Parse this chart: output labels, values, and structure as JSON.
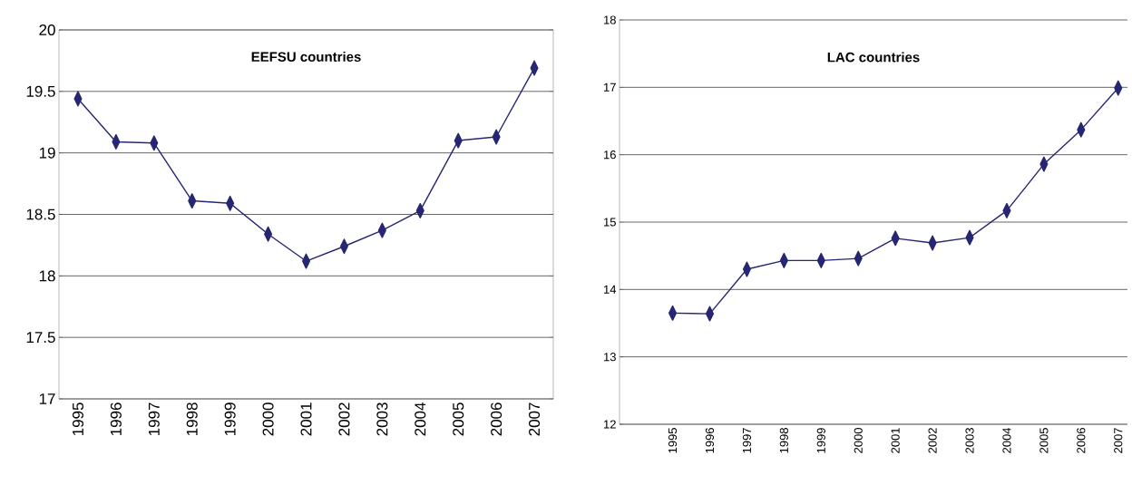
{
  "chart_data": [
    {
      "type": "line",
      "title": "EEFSU countries",
      "categories": [
        "1995",
        "1996",
        "1997",
        "1998",
        "1999",
        "2000",
        "2001",
        "2002",
        "2003",
        "2004",
        "2005",
        "2006",
        "2007"
      ],
      "values": [
        19.44,
        19.09,
        19.08,
        18.61,
        18.59,
        18.34,
        18.12,
        18.24,
        18.37,
        18.53,
        19.1,
        19.13,
        19.69
      ],
      "color": "#262673",
      "marker": "diamond",
      "grid": "y",
      "ylim": [
        17,
        20
      ],
      "yticks": [
        17,
        17.5,
        18,
        18.5,
        19,
        19.5,
        20
      ]
    },
    {
      "type": "line",
      "title": "LAC countries",
      "categories": [
        "1995",
        "1996",
        "1997",
        "1998",
        "1999",
        "2000",
        "2001",
        "2002",
        "2003",
        "2004",
        "2005",
        "2006",
        "2007"
      ],
      "values": [
        13.65,
        13.64,
        14.3,
        14.43,
        14.43,
        14.46,
        14.76,
        14.69,
        14.77,
        15.17,
        15.86,
        16.37,
        16.99
      ],
      "color": "#262673",
      "marker": "diamond",
      "grid": "y",
      "ylim": [
        12,
        18
      ],
      "yticks": [
        12,
        13,
        14,
        15,
        16,
        17,
        18
      ]
    }
  ]
}
